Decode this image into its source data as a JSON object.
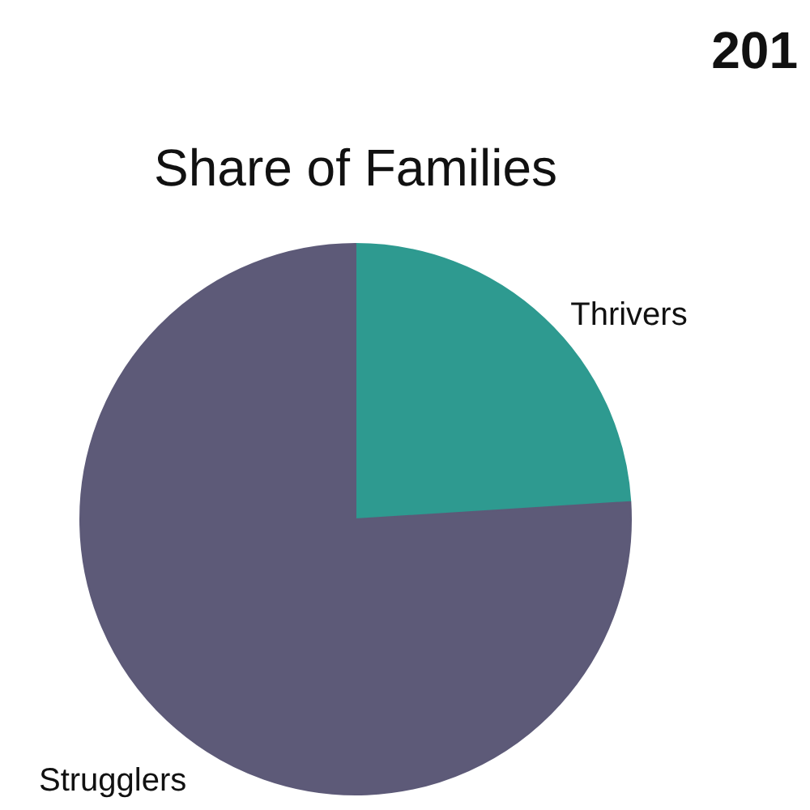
{
  "chart_data": {
    "type": "pie",
    "title": "Share of Families",
    "categories": [
      "Thrivers",
      "Strugglers"
    ],
    "values": [
      24,
      76
    ],
    "colors": [
      "#2e9a90",
      "#5d5a78"
    ],
    "annotations": [
      "201"
    ]
  }
}
